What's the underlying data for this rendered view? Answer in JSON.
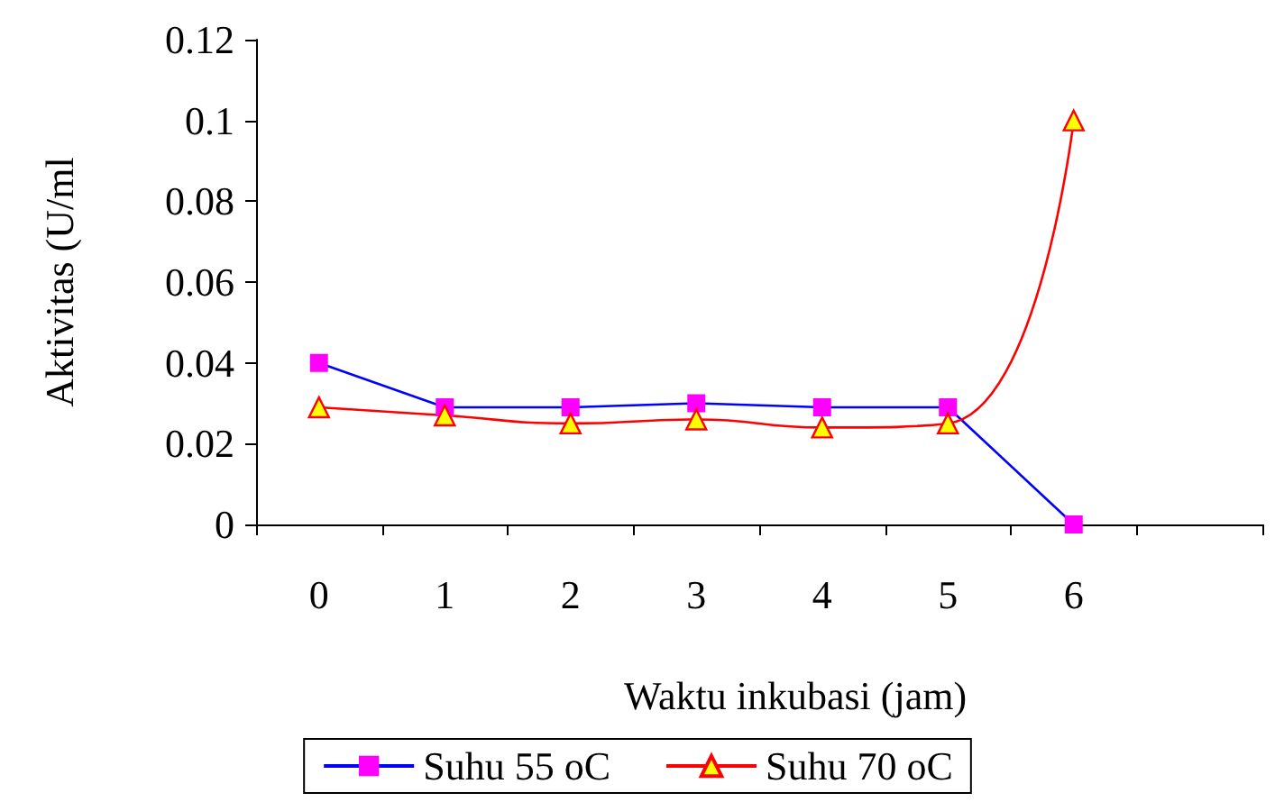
{
  "chart_data": {
    "type": "line",
    "xlabel": "Waktu inkubasi (jam)",
    "ylabel": "Aktivitas (U/ml",
    "categories": [
      "0",
      "1",
      "2",
      "3",
      "4",
      "5",
      "6",
      null
    ],
    "series": [
      {
        "name": "Suhu 55 oC",
        "color": "#0000ff",
        "marker": "square",
        "values": [
          0.04,
          0.029,
          0.029,
          0.03,
          0.029,
          0.029,
          0.0,
          null
        ]
      },
      {
        "name": "Suhu 70 oC",
        "color": "#ff0000",
        "marker": "triangle",
        "values": [
          0.029,
          0.027,
          0.025,
          0.026,
          0.024,
          0.025,
          0.1,
          null
        ]
      }
    ],
    "ylim": [
      0,
      0.12
    ],
    "yticks": [
      0,
      0.02,
      0.04,
      0.06,
      0.08,
      0.1,
      0.12
    ],
    "grid": false,
    "legend": "bottom",
    "line_style": "solid"
  }
}
